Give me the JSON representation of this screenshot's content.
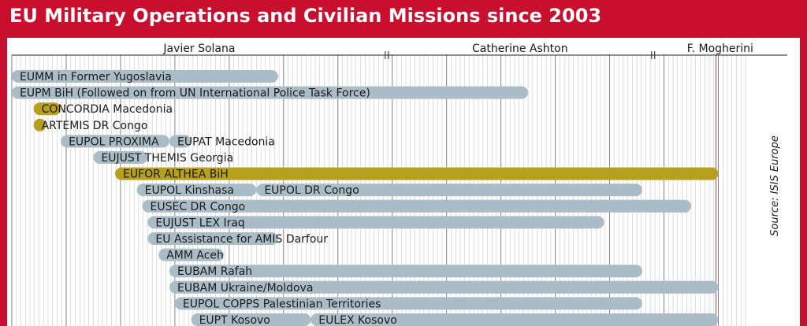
{
  "title": "EU Military Operations and Civilian Missions since 2003",
  "source": "Source: ISIS Europe",
  "colors": {
    "civilian": "#aabdc6",
    "military": "#b8a01f",
    "frame": "#c8102e",
    "grid": "#4a4a4a",
    "today_line": "#d0453a"
  },
  "chart_data": {
    "type": "bar",
    "eras": [
      {
        "label": "Javier Solana",
        "start": 2003.0,
        "end": 2009.9
      },
      {
        "label": "Catherine Ashton",
        "start": 2009.9,
        "end": 2014.8
      },
      {
        "label": "F. Mogherini",
        "start": 2014.8,
        "end": 2016.5
      }
    ],
    "x_range": [
      2003.0,
      2016.5
    ],
    "series": [
      {
        "name": "civilian",
        "label": "EUMM in Former Yugoslavia",
        "start": 2003.0,
        "end": 2007.9,
        "row": 0
      },
      {
        "name": "civilian",
        "label": "EUPM BiH (Followed on from UN International Police Task Force)",
        "start": 2003.0,
        "end": 2012.5,
        "row": 1
      },
      {
        "name": "military",
        "label": "CONCORDIA  Macedonia",
        "start": 2003.4,
        "end": 2003.9,
        "row": 2
      },
      {
        "name": "military",
        "label": "ARTEMIS DR Congo",
        "start": 2003.4,
        "end": 2003.6,
        "row": 3
      },
      {
        "name": "civilian",
        "label": "EUPOL PROXIMA",
        "start": 2003.9,
        "end": 2005.9,
        "row": 4
      },
      {
        "name": "civilian",
        "label": "EUPAT Macedonia",
        "start": 2005.9,
        "end": 2006.3,
        "row": 4
      },
      {
        "name": "civilian",
        "label": "EUJUST THEMIS Georgia",
        "start": 2004.5,
        "end": 2005.5,
        "row": 5
      },
      {
        "name": "military",
        "label": "EUFOR ALTHEA BiH",
        "start": 2004.9,
        "end": 2016.0,
        "row": 6
      },
      {
        "name": "civilian",
        "label": "EUPOL Kinshasa",
        "start": 2005.3,
        "end": 2007.5,
        "row": 7
      },
      {
        "name": "civilian",
        "label": "EUPOL DR Congo",
        "start": 2007.5,
        "end": 2014.6,
        "row": 7
      },
      {
        "name": "civilian",
        "label": "EUSEC DR Congo",
        "start": 2005.4,
        "end": 2015.5,
        "row": 8
      },
      {
        "name": "civilian",
        "label": "EUJUST LEX Iraq",
        "start": 2005.5,
        "end": 2013.9,
        "row": 9
      },
      {
        "name": "civilian",
        "label": "EU Assistance for AMIS Darfour",
        "start": 2005.5,
        "end": 2007.9,
        "row": 10
      },
      {
        "name": "civilian",
        "label": "AMM Aceh",
        "start": 2005.7,
        "end": 2006.9,
        "row": 11
      },
      {
        "name": "civilian",
        "label": "EUBAM Rafah",
        "start": 2005.9,
        "end": 2014.6,
        "row": 12
      },
      {
        "name": "civilian",
        "label": "EUBAM Ukraine/Moldova",
        "start": 2005.9,
        "end": 2016.0,
        "row": 13
      },
      {
        "name": "civilian",
        "label": "EUPOL COPPS Palestinian Territories",
        "start": 2006.0,
        "end": 2014.6,
        "row": 14
      },
      {
        "name": "civilian",
        "label": "EUPT Kosovo",
        "start": 2006.3,
        "end": 2008.5,
        "row": 15
      },
      {
        "name": "civilian",
        "label": "EULEX Kosovo",
        "start": 2008.5,
        "end": 2016.0,
        "row": 15
      }
    ]
  }
}
